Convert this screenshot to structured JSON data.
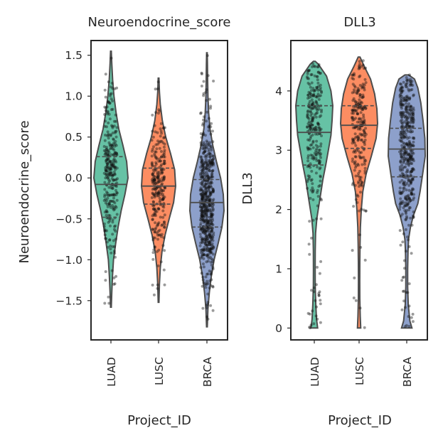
{
  "chart_data": [
    {
      "type": "violin",
      "title": "Neuroendocrine_score",
      "xlabel": "Project_ID",
      "ylabel": "Neuroendocrine_score",
      "categories": [
        "LUAD",
        "LUSC",
        "BRCA"
      ],
      "colors": [
        "#66c2a5",
        "#fc8d62",
        "#8da0cb"
      ],
      "ylim": [
        -1.98,
        1.68
      ],
      "yticks": [
        -1.5,
        -1.0,
        -0.5,
        0.0,
        0.5,
        1.0,
        1.5
      ],
      "ytick_labels": [
        "−1.5",
        "−1.0",
        "−0.5",
        "0.0",
        "0.5",
        "1.0",
        "1.5"
      ],
      "inner": "quartile",
      "strip_points": true,
      "series": [
        {
          "category": "LUAD",
          "min": -1.58,
          "max": 1.55,
          "q1": -0.48,
          "median": -0.08,
          "q3": 0.26,
          "density": [
            [
              -1.58,
              0.02
            ],
            [
              -1.4,
              0.05
            ],
            [
              -1.2,
              0.09
            ],
            [
              -1.0,
              0.15
            ],
            [
              -0.8,
              0.28
            ],
            [
              -0.6,
              0.42
            ],
            [
              -0.4,
              0.6
            ],
            [
              -0.2,
              0.82
            ],
            [
              0.0,
              1.0
            ],
            [
              0.2,
              0.92
            ],
            [
              0.4,
              0.7
            ],
            [
              0.6,
              0.46
            ],
            [
              0.8,
              0.3
            ],
            [
              1.0,
              0.18
            ],
            [
              1.2,
              0.1
            ],
            [
              1.4,
              0.05
            ],
            [
              1.55,
              0.02
            ]
          ],
          "n_points": 300
        },
        {
          "category": "LUSC",
          "min": -1.52,
          "max": 1.22,
          "q1": -0.32,
          "median": -0.1,
          "q3": 0.12,
          "density": [
            [
              -1.52,
              0.02
            ],
            [
              -1.3,
              0.05
            ],
            [
              -1.1,
              0.1
            ],
            [
              -0.9,
              0.2
            ],
            [
              -0.7,
              0.38
            ],
            [
              -0.5,
              0.62
            ],
            [
              -0.3,
              0.88
            ],
            [
              -0.1,
              1.0
            ],
            [
              0.1,
              0.94
            ],
            [
              0.3,
              0.7
            ],
            [
              0.5,
              0.42
            ],
            [
              0.7,
              0.22
            ],
            [
              0.9,
              0.1
            ],
            [
              1.05,
              0.05
            ],
            [
              1.22,
              0.02
            ]
          ],
          "n_points": 260
        },
        {
          "category": "BRCA",
          "min": -1.82,
          "max": 1.53,
          "q1": -0.6,
          "median": -0.3,
          "q3": -0.02,
          "density": [
            [
              -1.82,
              0.02
            ],
            [
              -1.6,
              0.06
            ],
            [
              -1.4,
              0.14
            ],
            [
              -1.2,
              0.26
            ],
            [
              -1.0,
              0.42
            ],
            [
              -0.8,
              0.66
            ],
            [
              -0.6,
              0.88
            ],
            [
              -0.4,
              1.0
            ],
            [
              -0.2,
              0.96
            ],
            [
              0.0,
              0.8
            ],
            [
              0.2,
              0.56
            ],
            [
              0.4,
              0.34
            ],
            [
              0.6,
              0.18
            ],
            [
              0.8,
              0.1
            ],
            [
              1.0,
              0.06
            ],
            [
              1.2,
              0.04
            ],
            [
              1.4,
              0.03
            ],
            [
              1.53,
              0.015
            ]
          ],
          "n_points": 600
        }
      ]
    },
    {
      "type": "violin",
      "title": "DLL3",
      "xlabel": "Project_ID",
      "ylabel": "DLL3",
      "categories": [
        "LUAD",
        "LUSC",
        "BRCA"
      ],
      "colors": [
        "#66c2a5",
        "#fc8d62",
        "#8da0cb"
      ],
      "ylim": [
        -0.2,
        4.85
      ],
      "yticks": [
        0,
        1,
        2,
        3,
        4
      ],
      "ytick_labels": [
        "0",
        "1",
        "2",
        "3",
        "4"
      ],
      "inner": "quartile",
      "strip_points": true,
      "series": [
        {
          "category": "LUAD",
          "min": 0.0,
          "max": 4.5,
          "q1": 2.75,
          "median": 3.3,
          "q3": 3.75,
          "density": [
            [
              0.0,
              0.18
            ],
            [
              0.15,
              0.12
            ],
            [
              0.4,
              0.08
            ],
            [
              0.7,
              0.05
            ],
            [
              1.0,
              0.045
            ],
            [
              1.3,
              0.05
            ],
            [
              1.6,
              0.07
            ],
            [
              1.85,
              0.14
            ],
            [
              2.05,
              0.24
            ],
            [
              2.25,
              0.34
            ],
            [
              2.5,
              0.46
            ],
            [
              2.75,
              0.62
            ],
            [
              3.0,
              0.76
            ],
            [
              3.25,
              0.9
            ],
            [
              3.5,
              0.96
            ],
            [
              3.75,
              1.0
            ],
            [
              4.0,
              0.9
            ],
            [
              4.25,
              0.66
            ],
            [
              4.45,
              0.22
            ],
            [
              4.5,
              0.05
            ]
          ],
          "n_points": 280
        },
        {
          "category": "LUSC",
          "min": 0.0,
          "max": 4.57,
          "q1": 3.03,
          "median": 3.42,
          "q3": 3.75,
          "density": [
            [
              0.0,
              0.09
            ],
            [
              0.2,
              0.06
            ],
            [
              0.5,
              0.04
            ],
            [
              0.8,
              0.035
            ],
            [
              1.1,
              0.04
            ],
            [
              1.4,
              0.05
            ],
            [
              1.7,
              0.07
            ],
            [
              2.0,
              0.12
            ],
            [
              2.3,
              0.2
            ],
            [
              2.6,
              0.38
            ],
            [
              2.9,
              0.66
            ],
            [
              3.2,
              0.92
            ],
            [
              3.45,
              1.0
            ],
            [
              3.7,
              0.96
            ],
            [
              3.95,
              0.84
            ],
            [
              4.2,
              0.62
            ],
            [
              4.4,
              0.3
            ],
            [
              4.57,
              0.05
            ]
          ],
          "n_points": 240
        },
        {
          "category": "BRCA",
          "min": 0.0,
          "max": 4.27,
          "q1": 2.55,
          "median": 3.02,
          "q3": 3.37,
          "density": [
            [
              0.0,
              0.28
            ],
            [
              0.12,
              0.17
            ],
            [
              0.4,
              0.08
            ],
            [
              0.7,
              0.05
            ],
            [
              1.0,
              0.05
            ],
            [
              1.3,
              0.07
            ],
            [
              1.5,
              0.1
            ],
            [
              1.7,
              0.2
            ],
            [
              1.9,
              0.36
            ],
            [
              2.1,
              0.6
            ],
            [
              2.3,
              0.72
            ],
            [
              2.6,
              0.86
            ],
            [
              2.9,
              1.0
            ],
            [
              3.2,
              0.98
            ],
            [
              3.5,
              0.88
            ],
            [
              3.8,
              0.76
            ],
            [
              4.05,
              0.6
            ],
            [
              4.2,
              0.42
            ],
            [
              4.27,
              0.1
            ]
          ],
          "n_points": 450
        }
      ]
    }
  ]
}
